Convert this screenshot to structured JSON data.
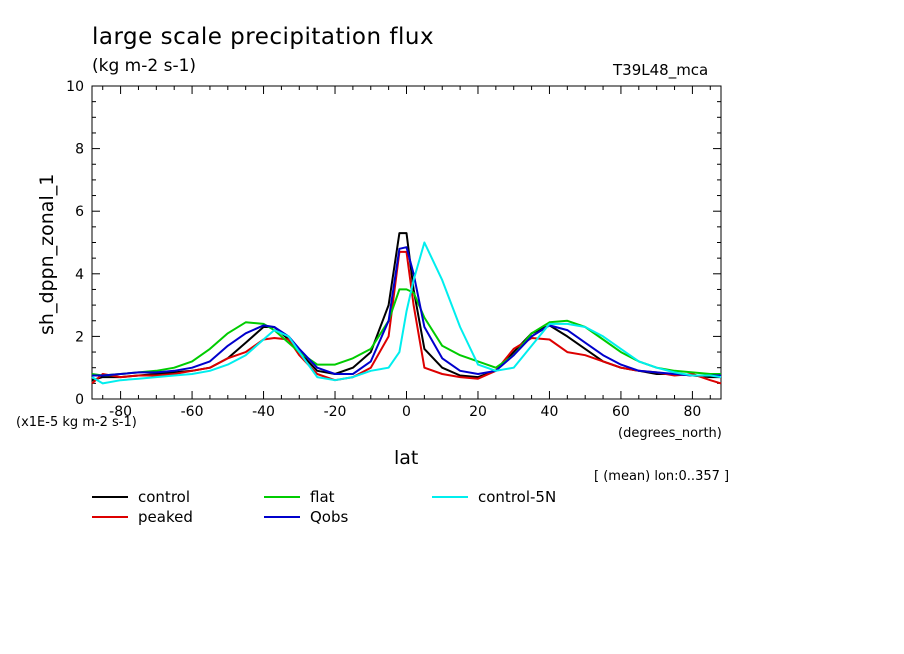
{
  "chart_data": {
    "type": "line",
    "title": "large scale precipitation flux",
    "units": "(kg m-2 s-1)",
    "run_label": "T39L48_mca",
    "ylabel": "sh_dppn_zonal_1",
    "xlabel": "lat",
    "x_units": "(degrees_north)",
    "y_scale_note": "(x1E-5 kg m-2 s-1)",
    "mean_note": "[ (mean) lon:0..357 ]",
    "xlim": [
      -88,
      88
    ],
    "ylim": [
      0,
      10
    ],
    "xticks": [
      "-80",
      "-60",
      "-40",
      "-20",
      "0",
      "20",
      "40",
      "60",
      "80"
    ],
    "yticks": [
      "0",
      "2",
      "4",
      "6",
      "8",
      "10"
    ],
    "grid": false,
    "legend_position": "bottom",
    "x": [
      -88,
      -85,
      -80,
      -75,
      -70,
      -65,
      -60,
      -55,
      -50,
      -45,
      -40,
      -37,
      -33,
      -30,
      -25,
      -20,
      -15,
      -10,
      -5,
      -2,
      0,
      2,
      5,
      10,
      15,
      20,
      25,
      30,
      35,
      40,
      45,
      50,
      55,
      60,
      65,
      70,
      75,
      80,
      85,
      88
    ],
    "series": [
      {
        "name": "control",
        "color": "#000000",
        "values": [
          0.6,
          0.7,
          0.7,
          0.75,
          0.8,
          0.85,
          0.9,
          1.0,
          1.3,
          1.8,
          2.3,
          2.3,
          1.9,
          1.5,
          0.9,
          0.8,
          1.0,
          1.5,
          3.0,
          5.3,
          5.3,
          3.5,
          1.6,
          1.0,
          0.75,
          0.7,
          0.9,
          1.5,
          2.1,
          2.35,
          2.0,
          1.6,
          1.2,
          1.0,
          0.9,
          0.8,
          0.8,
          0.75,
          0.7,
          0.7
        ]
      },
      {
        "name": "peaked",
        "color": "#dd0000",
        "values": [
          0.5,
          0.8,
          0.7,
          0.75,
          0.75,
          0.8,
          0.9,
          1.0,
          1.3,
          1.5,
          1.9,
          1.95,
          1.9,
          1.4,
          0.8,
          0.6,
          0.7,
          1.0,
          2.0,
          4.7,
          4.7,
          3.0,
          1.0,
          0.8,
          0.7,
          0.65,
          0.9,
          1.6,
          1.95,
          1.9,
          1.5,
          1.4,
          1.2,
          1.0,
          0.9,
          0.85,
          0.75,
          0.8,
          0.6,
          0.5
        ]
      },
      {
        "name": "flat",
        "color": "#00cc00",
        "values": [
          0.8,
          0.75,
          0.8,
          0.85,
          0.9,
          1.0,
          1.2,
          1.6,
          2.1,
          2.45,
          2.4,
          2.2,
          1.8,
          1.5,
          1.1,
          1.1,
          1.3,
          1.6,
          2.5,
          3.5,
          3.5,
          3.4,
          2.6,
          1.7,
          1.4,
          1.2,
          1.0,
          1.4,
          2.1,
          2.45,
          2.5,
          2.3,
          1.9,
          1.5,
          1.2,
          1.0,
          0.9,
          0.85,
          0.8,
          0.8
        ]
      },
      {
        "name": "Qobs",
        "color": "#0000cc",
        "values": [
          0.75,
          0.75,
          0.8,
          0.85,
          0.85,
          0.9,
          1.0,
          1.2,
          1.7,
          2.1,
          2.35,
          2.3,
          2.0,
          1.6,
          1.0,
          0.8,
          0.8,
          1.2,
          2.5,
          4.8,
          4.85,
          4.0,
          2.3,
          1.3,
          0.9,
          0.8,
          0.9,
          1.4,
          2.0,
          2.35,
          2.2,
          1.8,
          1.4,
          1.1,
          0.9,
          0.85,
          0.8,
          0.75,
          0.75,
          0.75
        ]
      },
      {
        "name": "control-5N",
        "color": "#00eeee",
        "values": [
          0.7,
          0.5,
          0.6,
          0.65,
          0.7,
          0.75,
          0.8,
          0.9,
          1.1,
          1.4,
          1.9,
          2.2,
          2.0,
          1.5,
          0.7,
          0.6,
          0.7,
          0.9,
          1.0,
          1.5,
          2.8,
          3.8,
          5.0,
          3.8,
          2.3,
          1.1,
          0.9,
          1.0,
          1.7,
          2.4,
          2.4,
          2.3,
          2.0,
          1.6,
          1.2,
          1.0,
          0.85,
          0.75,
          0.75,
          0.7
        ]
      }
    ]
  }
}
